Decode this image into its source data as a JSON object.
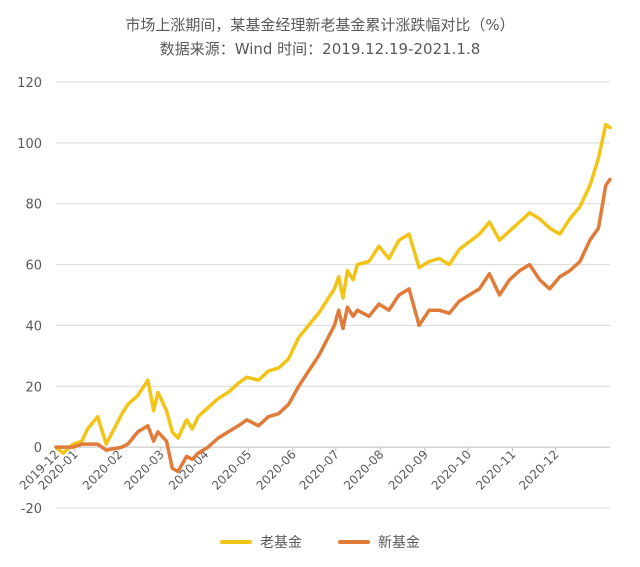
{
  "chart_data": {
    "type": "line",
    "title": "市场上涨期间，某基金经理新老基金累计涨跌幅对比（%）",
    "subtitle": "数据来源：Wind 时间：2019.12.19-2021.1.8",
    "xlabel": "",
    "ylabel": "",
    "ylim": [
      -20,
      120
    ],
    "yticks": [
      -20,
      0,
      20,
      40,
      60,
      80,
      100,
      120
    ],
    "x_tick_labels": [
      "2019-12",
      "2020-01",
      "2020-02",
      "2020-03",
      "2020-04",
      "2020-05",
      "2020-06",
      "2020-07",
      "2020-08",
      "2020-09",
      "2020-10",
      "2020-11",
      "2020-12"
    ],
    "grid": true,
    "legend_position": "bottom",
    "x": [
      "2019-12-19",
      "2019-12-24",
      "2019-12-31",
      "2020-01-06",
      "2020-01-10",
      "2020-01-17",
      "2020-01-23",
      "2020-02-03",
      "2020-02-07",
      "2020-02-14",
      "2020-02-21",
      "2020-02-25",
      "2020-02-28",
      "2020-03-05",
      "2020-03-09",
      "2020-03-13",
      "2020-03-19",
      "2020-03-23",
      "2020-03-27",
      "2020-04-03",
      "2020-04-10",
      "2020-04-17",
      "2020-04-24",
      "2020-04-30",
      "2020-05-08",
      "2020-05-15",
      "2020-05-22",
      "2020-05-29",
      "2020-06-05",
      "2020-06-12",
      "2020-06-19",
      "2020-06-30",
      "2020-07-03",
      "2020-07-06",
      "2020-07-09",
      "2020-07-13",
      "2020-07-16",
      "2020-07-24",
      "2020-07-31",
      "2020-08-07",
      "2020-08-14",
      "2020-08-21",
      "2020-08-28",
      "2020-09-04",
      "2020-09-11",
      "2020-09-18",
      "2020-09-25",
      "2020-10-09",
      "2020-10-16",
      "2020-10-23",
      "2020-10-30",
      "2020-11-06",
      "2020-11-13",
      "2020-11-20",
      "2020-11-27",
      "2020-12-04",
      "2020-12-11",
      "2020-12-18",
      "2020-12-25",
      "2020-12-31",
      "2021-01-05",
      "2021-01-08"
    ],
    "series": [
      {
        "name": "老基金",
        "color": "#F2C416",
        "values": [
          0,
          -2,
          1,
          2,
          6,
          10,
          1,
          11,
          14,
          17,
          22,
          12,
          18,
          12,
          5,
          3,
          9,
          6,
          10,
          13,
          16,
          18,
          21,
          23,
          22,
          25,
          26,
          29,
          36,
          40,
          44,
          52,
          56,
          49,
          58,
          55,
          60,
          61,
          66,
          62,
          68,
          70,
          59,
          61,
          62,
          60,
          65,
          70,
          74,
          68,
          71,
          74,
          77,
          75,
          72,
          70,
          75,
          79,
          86,
          95,
          106,
          105
        ]
      },
      {
        "name": "新基金",
        "color": "#E07B39",
        "values": [
          0,
          0,
          0,
          1,
          1,
          1,
          -1,
          0,
          1,
          5,
          7,
          2,
          5,
          2,
          -7,
          -8,
          -3,
          -4,
          -2,
          0,
          3,
          5,
          7,
          9,
          7,
          10,
          11,
          14,
          20,
          25,
          30,
          40,
          45,
          39,
          46,
          43,
          45,
          43,
          47,
          45,
          50,
          52,
          40,
          45,
          45,
          44,
          48,
          52,
          57,
          50,
          55,
          58,
          60,
          55,
          52,
          56,
          58,
          61,
          68,
          72,
          86,
          88
        ]
      }
    ]
  }
}
